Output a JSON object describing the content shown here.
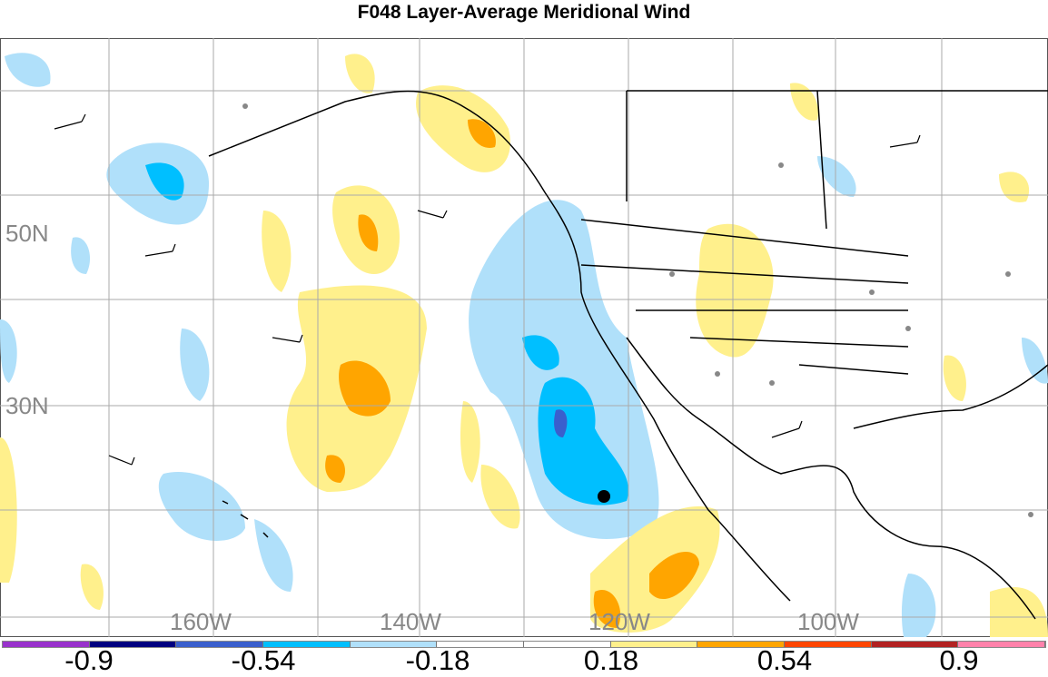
{
  "title": "F048 Layer-Average Meridional Wind",
  "lat_labels": [
    "50N",
    "30N"
  ],
  "lon_labels": [
    "160W",
    "140W",
    "120W",
    "100W"
  ],
  "colorbar": {
    "colors": [
      "#9932cc",
      "#000080",
      "#3a5fcd",
      "#00bfff",
      "#b0e0fa",
      "#ffffff",
      "#ffffff",
      "#fff08c",
      "#ffa500",
      "#ff4500",
      "#b22222",
      "#ff82ab"
    ],
    "labels": [
      "-0.9",
      "-0.54",
      "-0.18",
      "0.18",
      "0.54",
      "0.9"
    ]
  }
}
